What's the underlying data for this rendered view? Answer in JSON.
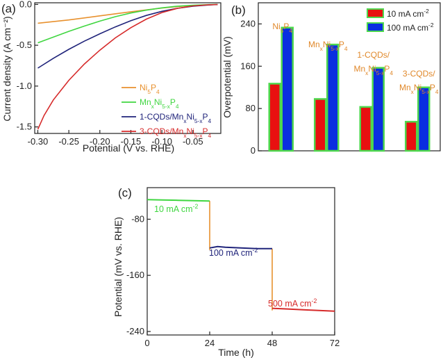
{
  "chart_data": [
    {
      "id": "a",
      "type": "line",
      "panel_label": "(a)",
      "xlabel": "Potential (V vs. RHE)",
      "ylabel": "Current density (A cm⁻²)",
      "xlim": [
        -0.305,
        -0.005
      ],
      "ylim": [
        -1.58,
        0.02
      ],
      "xticks": [
        -0.3,
        -0.25,
        -0.2,
        -0.15,
        -0.1,
        -0.05
      ],
      "xtick_labels": [
        "-0.30",
        "-0.25",
        "-0.20",
        "-0.15",
        "-0.10",
        "-0.05"
      ],
      "yticks": [
        0.0,
        -0.5,
        -1.0,
        -1.5
      ],
      "ytick_labels": [
        "0.0",
        "-0.5",
        "-1.0",
        "-1.5"
      ],
      "legend_position": "bottom-right",
      "series": [
        {
          "name": "Ni5P4",
          "legend": [
            [
              "Ni",
              ""
            ],
            [
              "5",
              "sub"
            ],
            [
              "P",
              ""
            ],
            [
              "4",
              "sub"
            ]
          ],
          "color": "#e8912e",
          "x": [
            -0.3,
            -0.25,
            -0.2,
            -0.15,
            -0.1,
            -0.075,
            -0.05,
            -0.025,
            -0.01
          ],
          "y": [
            -0.23,
            -0.19,
            -0.14,
            -0.09,
            -0.045,
            -0.027,
            -0.014,
            -0.005,
            -0.001
          ]
        },
        {
          "name": "MnxNi5-xP4",
          "legend": [
            [
              "Mn",
              ""
            ],
            [
              "x",
              "sub"
            ],
            [
              "Ni",
              ""
            ],
            [
              "5-x",
              "sub"
            ],
            [
              "P",
              ""
            ],
            [
              "4",
              "sub"
            ]
          ],
          "color": "#3fd640",
          "x": [
            -0.3,
            -0.275,
            -0.25,
            -0.225,
            -0.2,
            -0.175,
            -0.15,
            -0.125,
            -0.1,
            -0.075,
            -0.05,
            -0.025,
            -0.01
          ],
          "y": [
            -0.47,
            -0.4,
            -0.33,
            -0.265,
            -0.205,
            -0.15,
            -0.105,
            -0.07,
            -0.042,
            -0.022,
            -0.01,
            -0.003,
            0.0
          ]
        },
        {
          "name": "1-CQDs/MnxNi5-xP4",
          "legend": [
            [
              "1-CQDs/Mn",
              ""
            ],
            [
              "x",
              "sub"
            ],
            [
              "Ni",
              ""
            ],
            [
              "5-x",
              "sub"
            ],
            [
              "P",
              ""
            ],
            [
              "4",
              "sub"
            ]
          ],
          "color": "#1f237a",
          "x": [
            -0.3,
            -0.275,
            -0.25,
            -0.225,
            -0.2,
            -0.175,
            -0.15,
            -0.125,
            -0.1,
            -0.075,
            -0.05,
            -0.025,
            -0.01
          ],
          "y": [
            -0.78,
            -0.66,
            -0.55,
            -0.45,
            -0.36,
            -0.275,
            -0.2,
            -0.135,
            -0.085,
            -0.048,
            -0.022,
            -0.007,
            -0.001
          ]
        },
        {
          "name": "3-CQDs/MnxNi5-xP4",
          "legend": [
            [
              "3-CQDs/Mn",
              ""
            ],
            [
              "x",
              "sub"
            ],
            [
              "Ni",
              ""
            ],
            [
              "5-x",
              "sub"
            ],
            [
              "P",
              ""
            ],
            [
              "4",
              "sub"
            ]
          ],
          "color": "#d62a2a",
          "x": [
            -0.3,
            -0.29,
            -0.275,
            -0.25,
            -0.225,
            -0.2,
            -0.175,
            -0.15,
            -0.125,
            -0.1,
            -0.075,
            -0.05,
            -0.025,
            -0.01
          ],
          "y": [
            -1.53,
            -1.36,
            -1.17,
            -0.93,
            -0.73,
            -0.56,
            -0.41,
            -0.285,
            -0.18,
            -0.1,
            -0.048,
            -0.018,
            -0.005,
            -0.001
          ]
        }
      ]
    },
    {
      "id": "b",
      "type": "bar",
      "panel_label": "(b)",
      "ylabel": "Overpotential (mV)",
      "ylim": [
        0,
        280
      ],
      "yticks": [
        0,
        80,
        160,
        240
      ],
      "ytick_labels": [
        "0",
        "80",
        "160",
        "240"
      ],
      "legend_position": "top-right",
      "categories": [
        "Ni5P4",
        "MnxNi5-xP4",
        "1-CQDs/MnxNi5-xP4",
        "3-CQDs/MnxNi5-xP4"
      ],
      "category_labels": [
        [
          [
            [
              "Ni",
              ""
            ],
            [
              "5",
              "sub"
            ],
            [
              "P",
              ""
            ],
            [
              "4",
              "sub"
            ]
          ]
        ],
        [
          [
            [
              "Mn",
              ""
            ],
            [
              "x",
              "sub"
            ],
            [
              "Ni",
              ""
            ],
            [
              "5-x",
              "sub"
            ],
            [
              "P",
              ""
            ],
            [
              "4",
              "sub"
            ]
          ]
        ],
        [
          [
            [
              "1-CQDs/",
              ""
            ]
          ],
          [
            [
              "Mn",
              ""
            ],
            [
              "x",
              "sub"
            ],
            [
              "Ni",
              ""
            ],
            [
              "5-x",
              "sub"
            ],
            [
              "P",
              ""
            ],
            [
              "4",
              "sub"
            ]
          ]
        ],
        [
          [
            [
              "3-CQDs/",
              ""
            ]
          ],
          [
            [
              "Mn",
              ""
            ],
            [
              "x",
              "sub"
            ],
            [
              "Ni",
              ""
            ],
            [
              "5-x",
              "sub"
            ],
            [
              "P",
              ""
            ],
            [
              "4",
              "sub"
            ]
          ]
        ]
      ],
      "label_color": "#e0882a",
      "edge_color": "#4ed84e",
      "series": [
        {
          "name": "10 mA cm-2",
          "legend": [
            [
              "10 mA cm",
              ""
            ],
            [
              "-2",
              "sup"
            ]
          ],
          "color": "#e81010",
          "values": [
            127,
            98,
            83,
            55
          ]
        },
        {
          "name": "100 mA cm-2",
          "legend": [
            [
              "100 mA cm",
              ""
            ],
            [
              "-2",
              "sup"
            ]
          ],
          "color": "#0a2ee0",
          "values": [
            233,
            201,
            157,
            120
          ]
        }
      ]
    },
    {
      "id": "c",
      "type": "line",
      "panel_label": "(c)",
      "xlabel": "Time (h)",
      "ylabel": "Potential (mV vs. RHE)",
      "xlim": [
        0,
        72
      ],
      "ylim": [
        -245,
        -35
      ],
      "xticks": [
        0,
        24,
        48,
        72
      ],
      "xtick_labels": [
        "0",
        "24",
        "48",
        "72"
      ],
      "yticks": [
        -80,
        -160,
        -240
      ],
      "ytick_labels": [
        "-80",
        "-160",
        "-240"
      ],
      "transition_color": "#e8912e",
      "series": [
        {
          "name": "10 mA cm-2",
          "legend": [
            [
              "10 mA cm",
              ""
            ],
            [
              "-2",
              "sup"
            ]
          ],
          "color": "#3fd640",
          "x": [
            0,
            6,
            12,
            18,
            24
          ],
          "y": [
            -52,
            -52.5,
            -53,
            -53.5,
            -54
          ]
        },
        {
          "name": "100 mA cm-2",
          "legend": [
            [
              "100 mA cm",
              ""
            ],
            [
              "-2",
              "sup"
            ]
          ],
          "color": "#1f237a",
          "x": [
            24,
            27,
            30,
            36,
            42,
            48
          ],
          "y": [
            -121,
            -119,
            -120,
            -121,
            -122,
            -122
          ]
        },
        {
          "name": "500 mA cm-2",
          "legend": [
            [
              "500 mA cm",
              ""
            ],
            [
              "-2",
              "sup"
            ]
          ],
          "color": "#d62a2a",
          "x": [
            48,
            54,
            60,
            66,
            72
          ],
          "y": [
            -207,
            -208,
            -209,
            -210,
            -211
          ]
        }
      ]
    }
  ]
}
